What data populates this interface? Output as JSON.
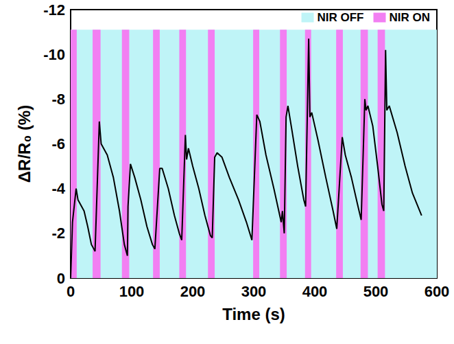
{
  "chart_data": {
    "type": "line",
    "x_label": "Time (s)",
    "y_label": "ΔR/R₀ (%)",
    "xlim": [
      0,
      600
    ],
    "xticks": [
      0,
      100,
      200,
      300,
      400,
      500,
      600
    ],
    "ylim": [
      0,
      -12
    ],
    "yticks": [
      0,
      -2,
      -4,
      -6,
      -8,
      -10,
      -12
    ],
    "grid": false,
    "legend": "top right",
    "shaded": [
      {
        "name": "NIR OFF",
        "color": "#bff4f7",
        "y_range": [
          0,
          -11.1
        ],
        "intervals": [
          [
            0,
            600
          ]
        ]
      },
      {
        "name": "NIR ON",
        "color": "#f27ff2",
        "y_range": [
          0,
          -11.1
        ],
        "intervals": [
          [
            0,
            10
          ],
          [
            36,
            49
          ],
          [
            84,
            96
          ],
          [
            135,
            146
          ],
          [
            178,
            189
          ],
          [
            225,
            236
          ],
          [
            299,
            309
          ],
          [
            343,
            354
          ],
          [
            384,
            394
          ],
          [
            435,
            446
          ],
          [
            475,
            487
          ],
          [
            503,
            515
          ]
        ]
      }
    ],
    "series": [
      {
        "color": "#000000",
        "line_style": "solid",
        "x": [
          0,
          3,
          9,
          12,
          16,
          22,
          28,
          34,
          38,
          40,
          44,
          47,
          50,
          60,
          70,
          80,
          88,
          93,
          94,
          98,
          105,
          115,
          125,
          134,
          138,
          146,
          150,
          160,
          170,
          178,
          182,
          188,
          190,
          193,
          200,
          210,
          220,
          229,
          232,
          236,
          240,
          248,
          260,
          275,
          288,
          297,
          305,
          310,
          320,
          333,
          345,
          347,
          350,
          353,
          356,
          362,
          372,
          382,
          385,
          390,
          392,
          395,
          405,
          418,
          430,
          436,
          445,
          450,
          460,
          470,
          476,
          482,
          484,
          487,
          495,
          503,
          510,
          513,
          516,
          518,
          522,
          535,
          548,
          560,
          575
        ],
        "values": [
          0,
          -2.5,
          -4.0,
          -3.5,
          -3.3,
          -3.0,
          -2.3,
          -1.5,
          -1.3,
          -1.2,
          -4.5,
          -7.0,
          -6.0,
          -5.5,
          -4.5,
          -3.0,
          -1.5,
          -1.0,
          -3.2,
          -5.1,
          -4.5,
          -3.5,
          -2.3,
          -1.5,
          -1.3,
          -4.9,
          -4.9,
          -4.0,
          -2.8,
          -2.0,
          -1.7,
          -6.4,
          -5.3,
          -5.8,
          -5.0,
          -4.0,
          -2.8,
          -1.9,
          -1.8,
          -5.4,
          -5.6,
          -5.4,
          -4.5,
          -3.5,
          -2.5,
          -1.7,
          -7.3,
          -7.0,
          -5.5,
          -4.0,
          -2.5,
          -3.0,
          -2.0,
          -7.2,
          -7.7,
          -6.7,
          -5.0,
          -3.5,
          -3.2,
          -10.7,
          -7.2,
          -7.4,
          -6.2,
          -4.5,
          -3.0,
          -2.2,
          -6.3,
          -5.5,
          -4.5,
          -3.3,
          -2.6,
          -8.0,
          -7.5,
          -7.7,
          -6.8,
          -5.0,
          -3.3,
          -3.0,
          -10.2,
          -7.5,
          -7.7,
          -6.5,
          -5.0,
          -3.8,
          -2.8
        ]
      }
    ]
  }
}
